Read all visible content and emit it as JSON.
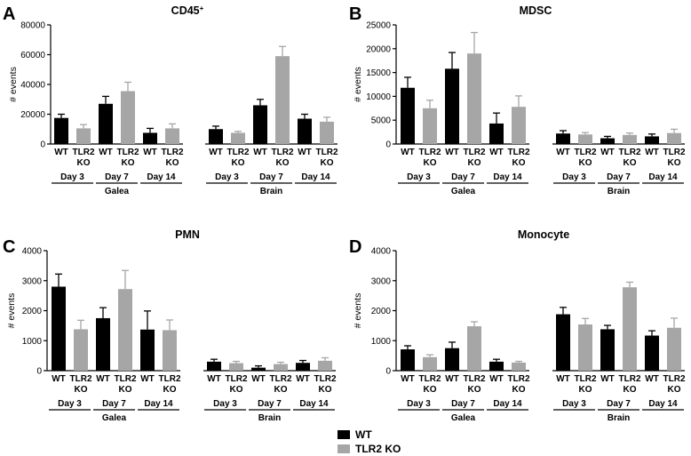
{
  "colors": {
    "wt": "#000000",
    "ko": "#a6a6a6",
    "axis": "#000000"
  },
  "legend": [
    {
      "label": "WT",
      "color": "#000000"
    },
    {
      "label": "TLR2 KO",
      "color": "#a6a6a6"
    }
  ],
  "chart_data": [
    {
      "letter": "A",
      "title": "CD45",
      "title_sup": "+",
      "type": "bar",
      "ylabel": "# events",
      "ylim": [
        0,
        80000
      ],
      "yticks": [
        "0",
        "20000",
        "40000",
        "60000",
        "80000"
      ],
      "categories": [
        "WT",
        "TLR2 KO",
        "WT",
        "TLR2 KO",
        "WT",
        "TLR2 KO"
      ],
      "days": [
        "Day 3",
        "Day 7",
        "Day 14"
      ],
      "groups": [
        {
          "name": "Galea",
          "wt": [
            17500,
            27000,
            7500
          ],
          "wt_err": [
            2500,
            5000,
            3000
          ],
          "ko": [
            10500,
            35500,
            10500
          ],
          "ko_err": [
            2500,
            6000,
            3000
          ]
        },
        {
          "name": "Brain",
          "wt": [
            10000,
            26000,
            17000
          ],
          "wt_err": [
            2000,
            4000,
            3000
          ],
          "ko": [
            7500,
            59000,
            15000
          ],
          "ko_err": [
            1000,
            6500,
            3000
          ]
        }
      ]
    },
    {
      "letter": "B",
      "title": "MDSC",
      "title_sup": "",
      "type": "bar",
      "ylabel": "# events",
      "ylim": [
        0,
        25000
      ],
      "yticks": [
        "0",
        "5000",
        "10000",
        "15000",
        "20000",
        "25000"
      ],
      "categories": [
        "WT",
        "TLR2 KO",
        "WT",
        "TLR2 KO",
        "WT",
        "TLR2 KO"
      ],
      "days": [
        "Day 3",
        "Day 7",
        "Day 14"
      ],
      "groups": [
        {
          "name": "Galea",
          "wt": [
            11800,
            15800,
            4300
          ],
          "wt_err": [
            2200,
            3400,
            2200
          ],
          "ko": [
            7500,
            19000,
            7800
          ],
          "ko_err": [
            1700,
            4400,
            2300
          ]
        },
        {
          "name": "Brain",
          "wt": [
            2200,
            1200,
            1600
          ],
          "wt_err": [
            600,
            400,
            500
          ],
          "ko": [
            2000,
            1900,
            2300
          ],
          "ko_err": [
            400,
            400,
            800
          ]
        }
      ]
    },
    {
      "letter": "C",
      "title": "PMN",
      "title_sup": "",
      "type": "bar",
      "ylabel": "# events",
      "ylim": [
        0,
        4000
      ],
      "yticks": [
        "0",
        "1000",
        "2000",
        "3000",
        "4000"
      ],
      "categories": [
        "WT",
        "TLR2 KO",
        "WT",
        "TLR2 KO",
        "WT",
        "TLR2 KO"
      ],
      "days": [
        "Day 3",
        "Day 7",
        "Day 14"
      ],
      "groups": [
        {
          "name": "Galea",
          "wt": [
            2800,
            1750,
            1370
          ],
          "wt_err": [
            420,
            350,
            620
          ],
          "ko": [
            1380,
            2720,
            1350
          ],
          "ko_err": [
            300,
            620,
            340
          ]
        },
        {
          "name": "Brain",
          "wt": [
            300,
            100,
            260
          ],
          "wt_err": [
            80,
            60,
            80
          ],
          "ko": [
            250,
            220,
            330
          ],
          "ko_err": [
            60,
            60,
            100
          ]
        }
      ]
    },
    {
      "letter": "D",
      "title": "Monocyte",
      "title_sup": "",
      "type": "bar",
      "ylabel": "# events",
      "ylim": [
        0,
        4000
      ],
      "yticks": [
        "0",
        "1000",
        "2000",
        "3000",
        "4000"
      ],
      "categories": [
        "WT",
        "TLR2 KO",
        "WT",
        "TLR2 KO",
        "WT",
        "TLR2 KO"
      ],
      "days": [
        "Day 3",
        "Day 7",
        "Day 14"
      ],
      "groups": [
        {
          "name": "Galea",
          "wt": [
            710,
            750,
            300
          ],
          "wt_err": [
            120,
            200,
            80
          ],
          "ko": [
            450,
            1480,
            270
          ],
          "ko_err": [
            80,
            150,
            40
          ]
        },
        {
          "name": "Brain",
          "wt": [
            1880,
            1380,
            1170
          ],
          "wt_err": [
            230,
            130,
            160
          ],
          "ko": [
            1540,
            2780,
            1430
          ],
          "ko_err": [
            200,
            170,
            320
          ]
        }
      ]
    }
  ]
}
